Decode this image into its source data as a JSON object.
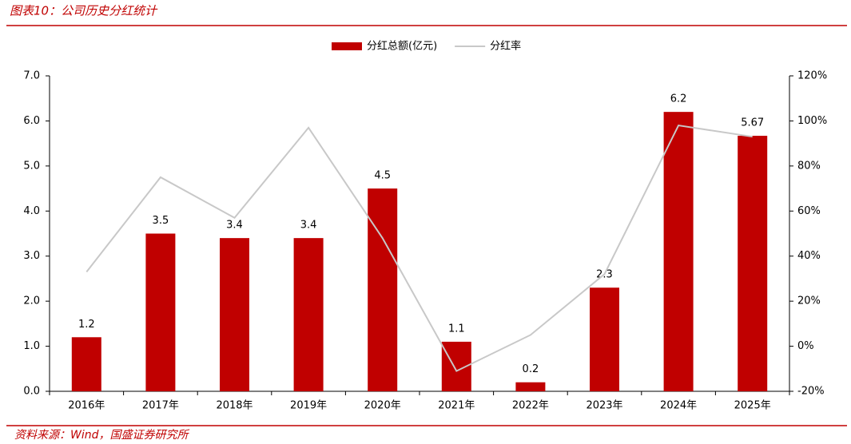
{
  "chart_data": {
    "type": "bar",
    "title": "图表10：公司历史分红统计",
    "source": "资料来源：Wind，国盛证券研究所",
    "categories": [
      "2016年",
      "2017年",
      "2018年",
      "2019年",
      "2020年",
      "2021年",
      "2022年",
      "2023年",
      "2024年",
      "2025年"
    ],
    "series": [
      {
        "name": "分红总额(亿元)",
        "type": "bar",
        "axis": "y",
        "color": "#c00000",
        "values": [
          1.2,
          3.5,
          3.4,
          3.4,
          4.5,
          1.1,
          0.2,
          2.3,
          6.2,
          5.67
        ]
      },
      {
        "name": "分红率",
        "type": "line",
        "axis": "y2",
        "color": "#c8c8c8",
        "values": [
          33,
          75,
          57,
          97,
          48,
          -11,
          5,
          32,
          98,
          93
        ]
      }
    ],
    "ylim": [
      0,
      7
    ],
    "yticks": [
      {
        "value": 0,
        "label": "0.0"
      },
      {
        "value": 1,
        "label": "1.0"
      },
      {
        "value": 2,
        "label": "2.0"
      },
      {
        "value": 3,
        "label": "3.0"
      },
      {
        "value": 4,
        "label": "4.0"
      },
      {
        "value": 5,
        "label": "5.0"
      },
      {
        "value": 6,
        "label": "6.0"
      },
      {
        "value": 7,
        "label": "7.0"
      }
    ],
    "y2lim": [
      -20,
      120
    ],
    "y2ticks": [
      {
        "value": -20,
        "label": "-20%"
      },
      {
        "value": 0,
        "label": "0%"
      },
      {
        "value": 20,
        "label": "20%"
      },
      {
        "value": 40,
        "label": "40%"
      },
      {
        "value": 60,
        "label": "60%"
      },
      {
        "value": 80,
        "label": "80%"
      },
      {
        "value": 100,
        "label": "100%"
      },
      {
        "value": 120,
        "label": "120%"
      }
    ],
    "grid": false,
    "legend": "top"
  }
}
